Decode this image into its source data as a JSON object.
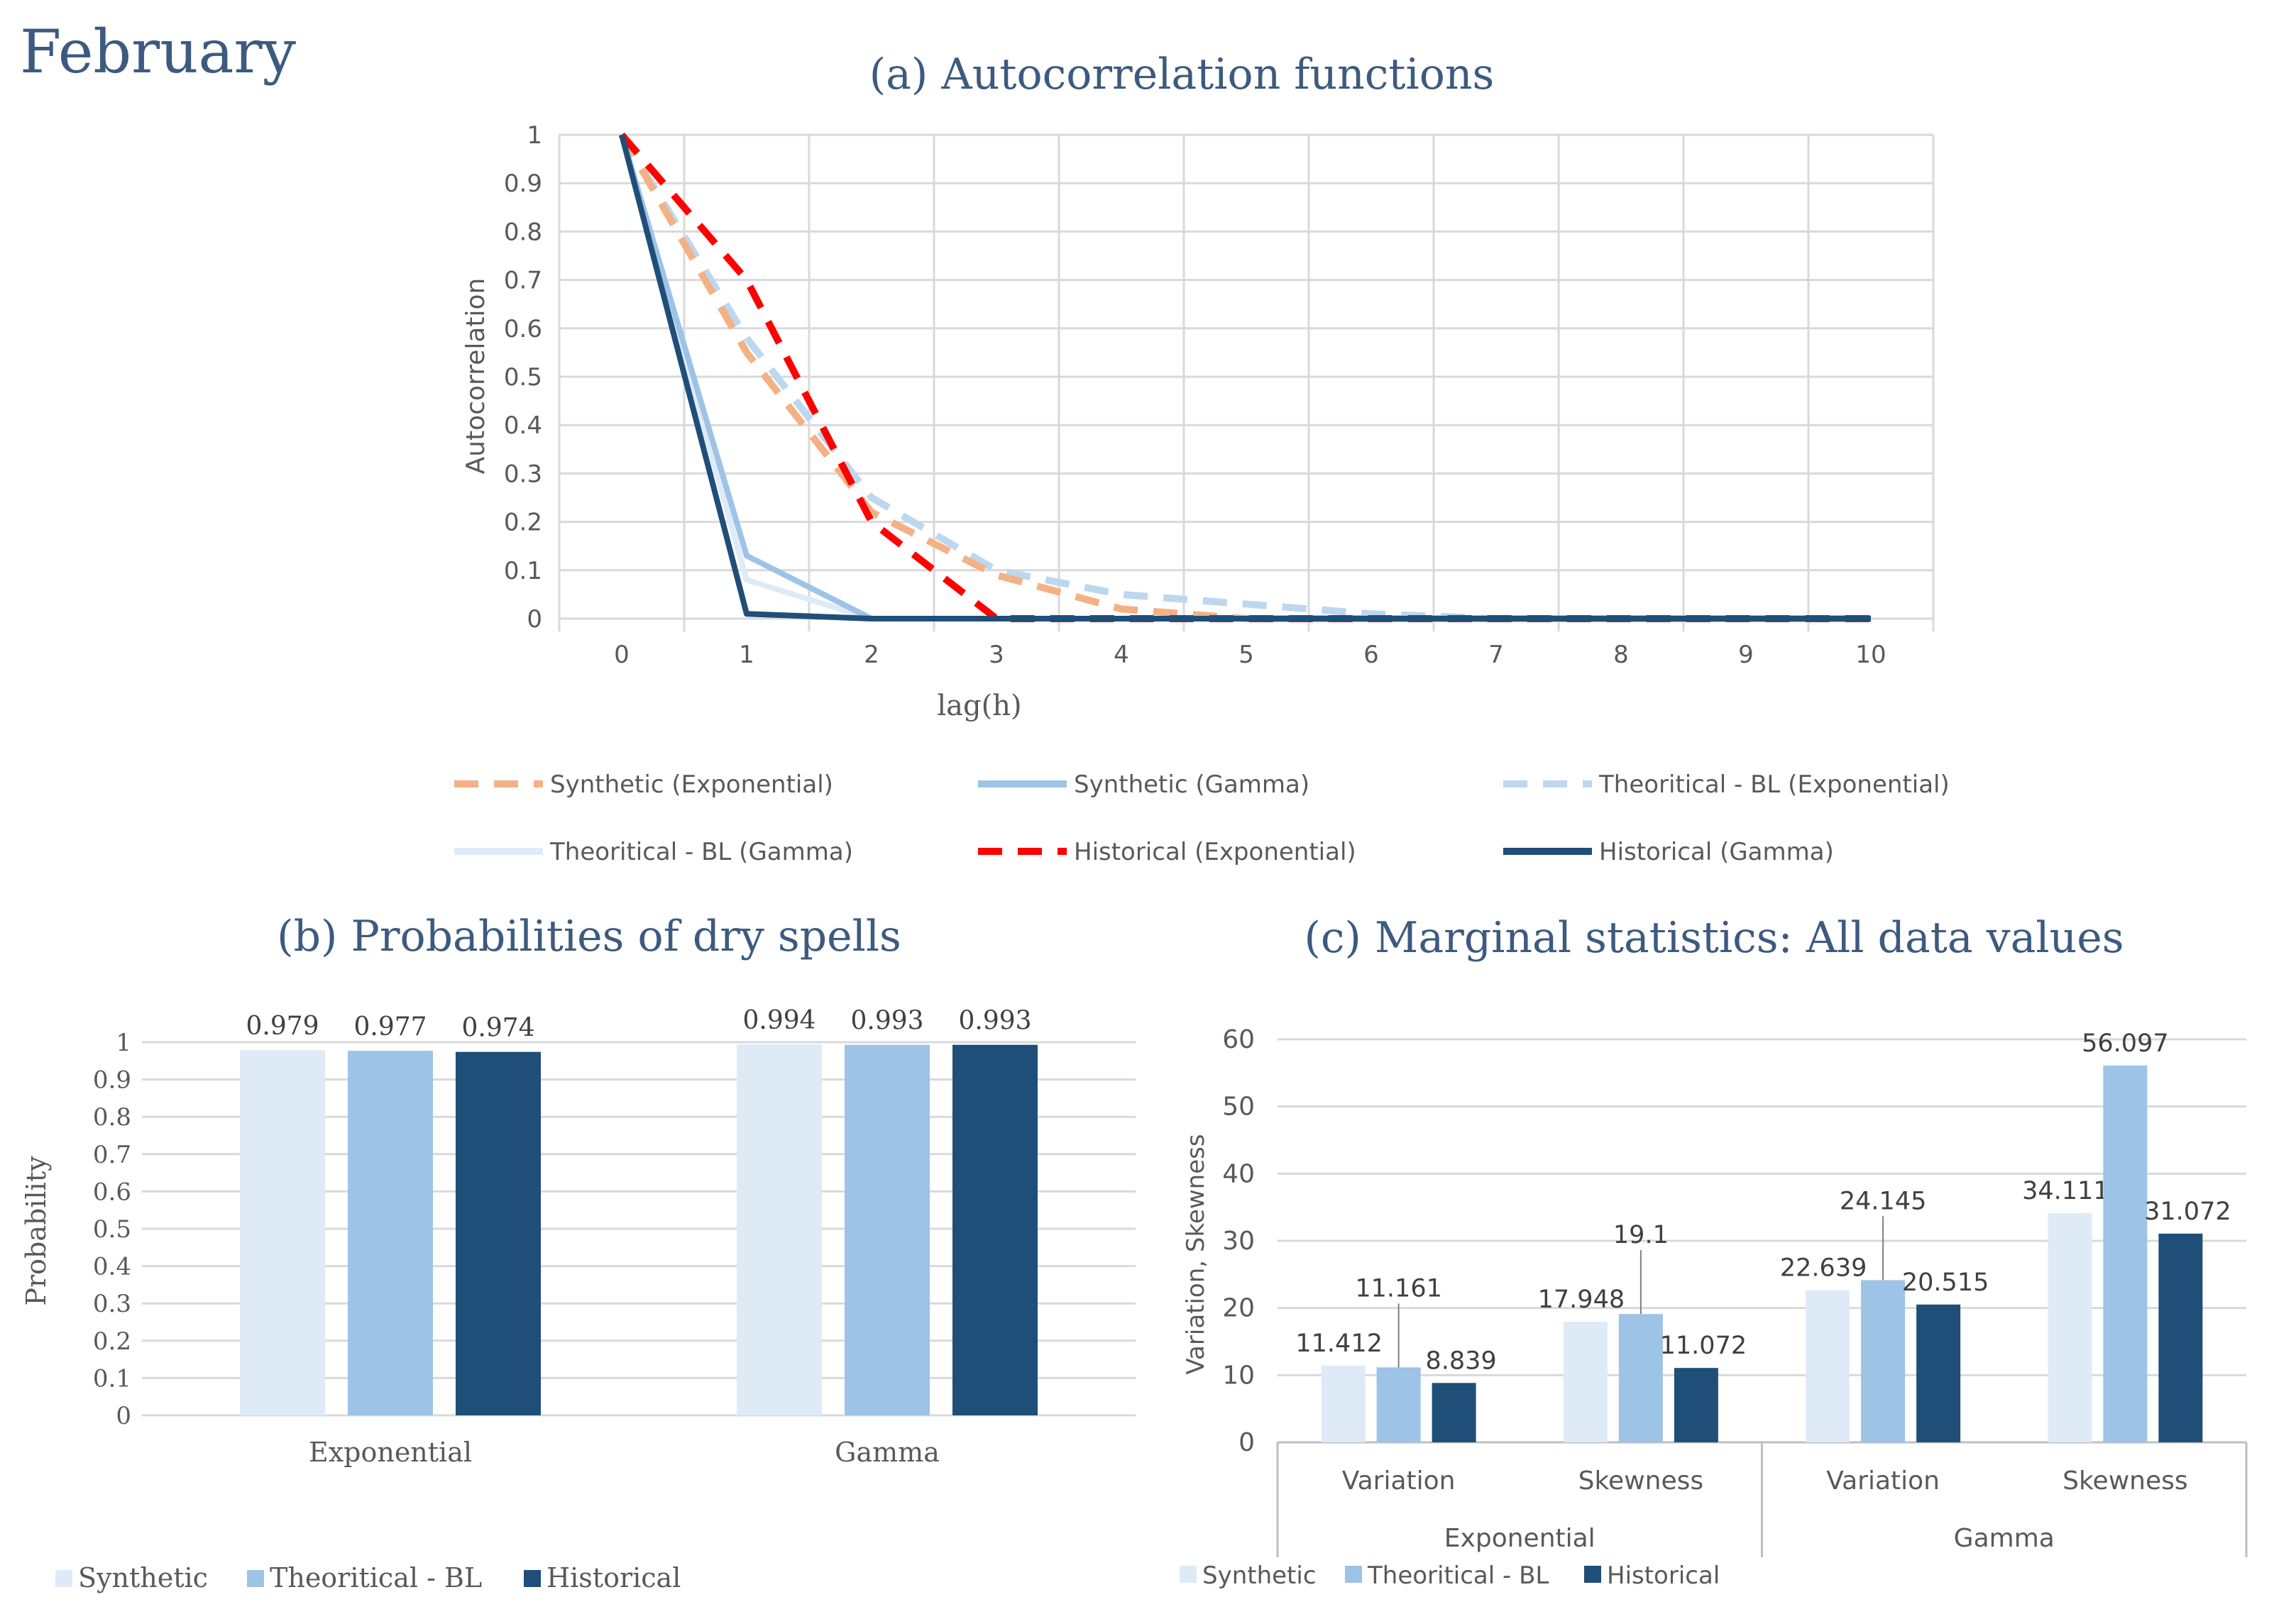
{
  "page": {
    "month_title": "February"
  },
  "colors": {
    "title": "#3d5a80",
    "orange": "#f4b183",
    "mid_blue": "#9dc3e6",
    "light_blue": "#bdd7ee",
    "very_light_blue": "#deebf7",
    "red": "#ff0000",
    "dark_blue": "#1f4e79",
    "grid": "#d9d9d9",
    "text": "#595959"
  },
  "chart_data": [
    {
      "id": "acf",
      "type": "line",
      "title": "(a) Autocorrelation functions",
      "xlabel": "lag(h)",
      "ylabel": "Autocorrelation",
      "x": [
        0,
        1,
        2,
        3,
        4,
        5,
        6,
        7,
        8,
        9,
        10
      ],
      "ylim": [
        0,
        1
      ],
      "yticks": [
        "0",
        "0.1",
        "0.2",
        "0.3",
        "0.4",
        "0.5",
        "0.6",
        "0.7",
        "0.8",
        "0.9",
        "1"
      ],
      "grid": true,
      "legend_position": "bottom",
      "series": [
        {
          "name": "Synthetic (Exponential)",
          "style": "dashed",
          "color": "#f4b183",
          "values": [
            1,
            0.55,
            0.22,
            0.09,
            0.02,
            0,
            0,
            0,
            0,
            0,
            0
          ]
        },
        {
          "name": "Synthetic (Gamma)",
          "style": "solid",
          "color": "#9dc3e6",
          "values": [
            1,
            0.13,
            0,
            0,
            0,
            0,
            0,
            0,
            0,
            0,
            0
          ]
        },
        {
          "name": "Theoritical - BL (Exponential)",
          "style": "dashed",
          "color": "#bdd7ee",
          "values": [
            1,
            0.58,
            0.25,
            0.1,
            0.05,
            0.03,
            0.01,
            0,
            0,
            0,
            0
          ]
        },
        {
          "name": "Theoritical - BL (Gamma)",
          "style": "solid",
          "color": "#deebf7",
          "values": [
            1,
            0.08,
            0,
            0,
            0,
            0,
            0,
            0,
            0,
            0,
            0
          ]
        },
        {
          "name": "Historical (Exponential)",
          "style": "dashed",
          "color": "#ff0000",
          "values": [
            1,
            0.7,
            0.2,
            0,
            0,
            0,
            0,
            0,
            0,
            0,
            0
          ]
        },
        {
          "name": "Historical (Gamma)",
          "style": "solid",
          "color": "#1f4e79",
          "values": [
            1,
            0.01,
            0,
            0,
            0,
            0,
            0,
            0,
            0,
            0,
            0
          ]
        }
      ]
    },
    {
      "id": "dry",
      "type": "bar",
      "title": "(b) Probabilities of dry spells",
      "xlabel": "",
      "ylabel": "Probability",
      "categories": [
        "Exponential",
        "Gamma"
      ],
      "ylim": [
        0,
        1
      ],
      "yticks": [
        "0",
        "0.1",
        "0.2",
        "0.3",
        "0.4",
        "0.5",
        "0.6",
        "0.7",
        "0.8",
        "0.9",
        "1"
      ],
      "grid": true,
      "legend_position": "bottom-left",
      "series": [
        {
          "name": "Synthetic",
          "color": "#deebf7",
          "values": [
            0.979,
            0.994
          ],
          "labels": [
            "0.979",
            "0.994"
          ]
        },
        {
          "name": "Theoritical - BL",
          "color": "#9dc3e6",
          "values": [
            0.977,
            0.993
          ],
          "labels": [
            "0.977",
            "0.993"
          ]
        },
        {
          "name": "Historical",
          "color": "#1f4e79",
          "values": [
            0.974,
            0.993
          ],
          "labels": [
            "0.974",
            "0.993"
          ]
        }
      ]
    },
    {
      "id": "marg",
      "type": "bar",
      "title": "(c) Marginal statistics: All data values",
      "xlabel": "",
      "ylabel": "Variation, Skewness",
      "categories": [
        "Variation",
        "Skewness",
        "Variation",
        "Skewness"
      ],
      "groups": [
        "Exponential",
        "Gamma"
      ],
      "ylim": [
        0,
        60
      ],
      "yticks": [
        "0",
        "10",
        "20",
        "30",
        "40",
        "50",
        "60"
      ],
      "grid": true,
      "legend_position": "bottom",
      "series": [
        {
          "name": "Synthetic",
          "color": "#deebf7",
          "values": [
            11.412,
            17.948,
            22.639,
            34.111
          ],
          "labels": [
            "11.412",
            "17.948",
            "22.639",
            "34.111"
          ]
        },
        {
          "name": "Theoritical - BL",
          "color": "#9dc3e6",
          "values": [
            11.161,
            19.1,
            24.145,
            56.097
          ],
          "labels": [
            "11.161",
            "19.1",
            "24.145",
            "56.097"
          ]
        },
        {
          "name": "Historical",
          "color": "#1f4e79",
          "values": [
            8.839,
            11.072,
            20.515,
            31.072
          ],
          "labels": [
            "8.839",
            "11.072",
            "20.515",
            "31.072"
          ]
        }
      ]
    }
  ]
}
